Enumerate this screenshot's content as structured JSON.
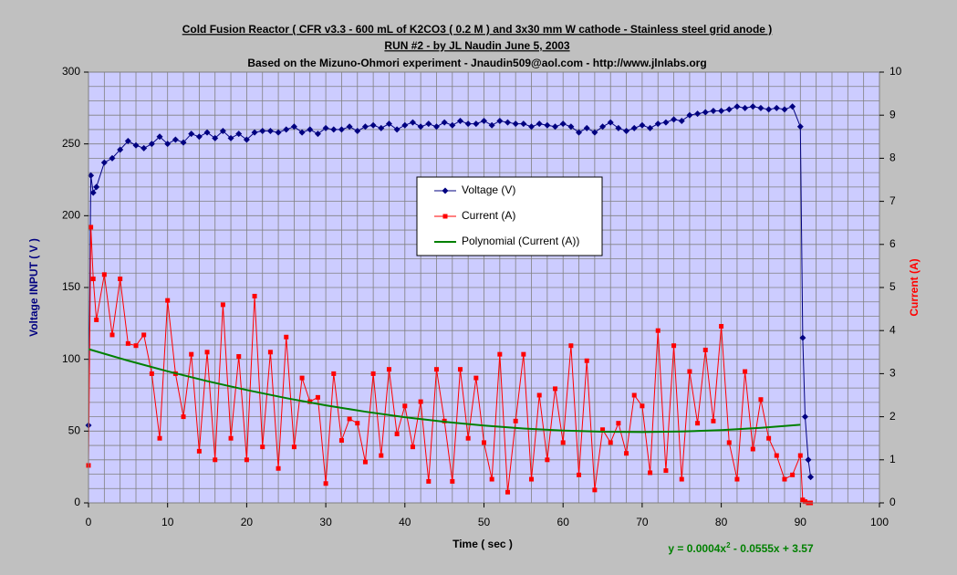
{
  "chart_data": {
    "type": "line",
    "title": [
      "Cold Fusion Reactor ( CFR v3.3 - 600 mL of K2CO3 ( 0.2 M ) and 3x30 mm W cathode - Stainless steel grid anode  )",
      "RUN #2 - by JL Naudin June 5, 2003",
      "Based on the Mizuno-Ohmori experiment - Jnaudin509@aol.com - http://www.jlnlabs.org"
    ],
    "x_label": "Time ( sec )",
    "y_label": "Voltage INPUT ( V )",
    "y2_label": "Current (A)",
    "equation": [
      "y = 0.0004x",
      "2",
      " - 0.0555x + 3.57"
    ],
    "xlim": [
      0,
      100
    ],
    "xticks": [
      0,
      10,
      20,
      30,
      40,
      50,
      60,
      70,
      80,
      90,
      100
    ],
    "ylim": [
      0,
      300
    ],
    "yticks": [
      0,
      50,
      100,
      150,
      200,
      250,
      300
    ],
    "y2lim": [
      0,
      10
    ],
    "y2ticks": [
      0,
      1,
      2,
      3,
      4,
      5,
      6,
      7,
      8,
      9,
      10
    ],
    "xgrid": [
      0,
      2,
      4,
      6,
      8,
      10,
      12,
      14,
      16,
      18,
      20,
      22,
      24,
      26,
      28,
      30,
      32,
      34,
      36,
      38,
      40,
      42,
      44,
      46,
      48,
      50,
      52,
      54,
      56,
      58,
      60,
      62,
      64,
      66,
      68,
      70,
      72,
      74,
      76,
      78,
      80,
      82,
      84,
      86,
      88,
      90,
      92,
      94,
      96,
      98,
      100
    ],
    "ygrid": [
      0,
      10,
      20,
      30,
      40,
      50,
      60,
      70,
      80,
      90,
      100,
      110,
      120,
      130,
      140,
      150,
      160,
      170,
      180,
      190,
      200,
      210,
      220,
      230,
      240,
      250,
      260,
      270,
      280,
      290,
      300
    ],
    "x": [
      0,
      0.3,
      0.6,
      1,
      2,
      3,
      4,
      5,
      6,
      7,
      8,
      9,
      10,
      11,
      12,
      13,
      14,
      15,
      16,
      17,
      18,
      19,
      20,
      21,
      22,
      23,
      24,
      25,
      26,
      27,
      28,
      29,
      30,
      31,
      32,
      33,
      34,
      35,
      36,
      37,
      38,
      39,
      40,
      41,
      42,
      43,
      44,
      45,
      46,
      47,
      48,
      49,
      50,
      51,
      52,
      53,
      54,
      55,
      56,
      57,
      58,
      59,
      60,
      61,
      62,
      63,
      64,
      65,
      66,
      67,
      68,
      69,
      70,
      71,
      72,
      73,
      74,
      75,
      76,
      77,
      78,
      79,
      80,
      81,
      82,
      83,
      84,
      85,
      86,
      87,
      88,
      89,
      90,
      90.3,
      90.6,
      91,
      91.3
    ],
    "series": [
      {
        "name": "Voltage (V)",
        "color": "#000080",
        "marker": "diamond",
        "axis": "y",
        "values": [
          54,
          228,
          216,
          220,
          237,
          240,
          246,
          252,
          249,
          247,
          250,
          255,
          250,
          253,
          251,
          257,
          255,
          258,
          254,
          259,
          254,
          257,
          253,
          258,
          259,
          259,
          258,
          260,
          262,
          258,
          260,
          257,
          261,
          260,
          260,
          262,
          259,
          262,
          263,
          261,
          264,
          260,
          263,
          265,
          262,
          264,
          262,
          265,
          263,
          266,
          264,
          264,
          266,
          263,
          266,
          265,
          264,
          264,
          262,
          264,
          263,
          262,
          264,
          262,
          258,
          261,
          258,
          262,
          265,
          261,
          259,
          261,
          263,
          261,
          264,
          265,
          267,
          266,
          270,
          271,
          272,
          273,
          273,
          274,
          276,
          275,
          276,
          275,
          274,
          275,
          274,
          276,
          262,
          115,
          60,
          30,
          18
        ]
      },
      {
        "name": "Current (A)",
        "color": "#ff0000",
        "marker": "square",
        "axis": "y2",
        "values": [
          0.87,
          6.4,
          5.2,
          4.25,
          5.3,
          3.9,
          5.2,
          3.7,
          3.65,
          3.9,
          3,
          1.5,
          4.7,
          3,
          2,
          3.45,
          1.2,
          3.5,
          1,
          4.6,
          1.5,
          3.4,
          1,
          4.8,
          1.3,
          3.5,
          0.8,
          3.85,
          1.3,
          2.9,
          2.35,
          2.45,
          0.45,
          3,
          1.45,
          1.95,
          1.85,
          0.95,
          3,
          1.1,
          3.1,
          1.6,
          2.25,
          1.3,
          2.35,
          0.5,
          3.1,
          1.9,
          0.5,
          3.1,
          1.5,
          2.9,
          1.4,
          0.55,
          3.45,
          0.25,
          1.9,
          3.45,
          0.55,
          2.5,
          1,
          2.65,
          1.4,
          3.65,
          0.65,
          3.3,
          0.3,
          1.7,
          1.4,
          1.85,
          1.15,
          2.5,
          2.25,
          0.7,
          4,
          0.75,
          3.65,
          0.55,
          3.05,
          1.85,
          3.55,
          1.9,
          4.1,
          1.4,
          0.55,
          3.05,
          1.25,
          2.4,
          1.5,
          1.1,
          0.55,
          0.65,
          1.1,
          0.07,
          0.03,
          0,
          0
        ]
      },
      {
        "name": "Polynomial (Current (A))",
        "color": "#008000",
        "marker": "none",
        "axis": "y2",
        "x": [
          0,
          5,
          10,
          15,
          20,
          25,
          30,
          35,
          40,
          45,
          50,
          55,
          60,
          65,
          70,
          75,
          80,
          85,
          90
        ],
        "values": [
          3.57,
          3.3025,
          3.055,
          2.8275,
          2.62,
          2.4325,
          2.265,
          2.1175,
          1.99,
          1.8825,
          1.795,
          1.7275,
          1.68,
          1.6525,
          1.645,
          1.6575,
          1.69,
          1.7425,
          1.815
        ]
      }
    ]
  }
}
